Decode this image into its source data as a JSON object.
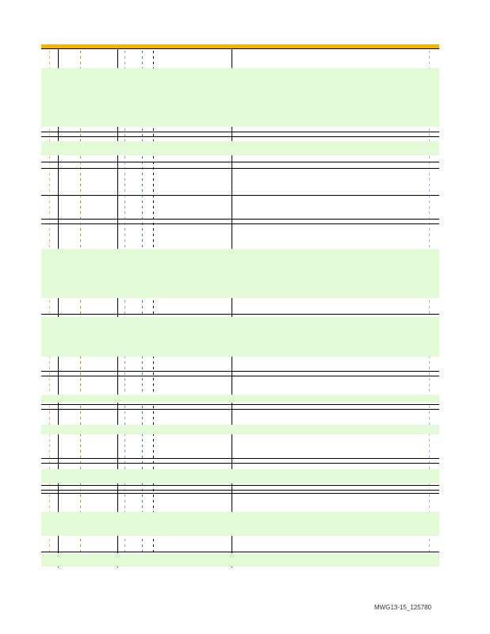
{
  "document": {
    "footer_id": "MWG13-15_125780",
    "colors": {
      "header": "#f6b400",
      "group_band": "#e2fad6",
      "rule": "#000000"
    }
  }
}
